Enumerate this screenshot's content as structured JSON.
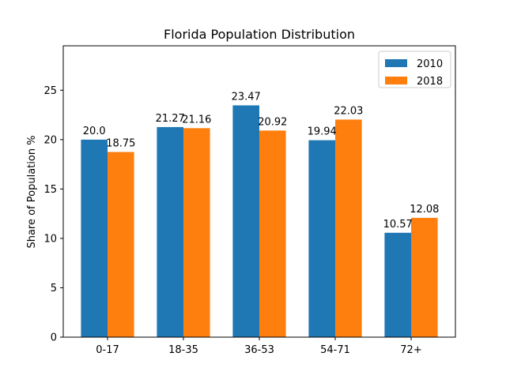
{
  "chart_data": {
    "type": "bar",
    "title": "Florida Population Distribution",
    "xlabel": "",
    "ylabel": "Share of Population %",
    "categories": [
      "0-17",
      "18-35",
      "36-53",
      "54-71",
      "72+"
    ],
    "series": [
      {
        "name": "2010",
        "values": [
          20.0,
          21.27,
          23.47,
          19.94,
          10.57
        ],
        "color": "#1f77b4"
      },
      {
        "name": "2018",
        "values": [
          18.75,
          21.16,
          20.92,
          22.03,
          12.08
        ],
        "color": "#ff7f0e"
      }
    ],
    "data_labels": [
      [
        "20.0",
        "21.27",
        "23.47",
        "19.94",
        "10.57"
      ],
      [
        "18.75",
        "21.16",
        "20.92",
        "22.03",
        "12.08"
      ]
    ],
    "ylim": [
      0,
      29.5
    ],
    "yticks": [
      0,
      5,
      10,
      15,
      20,
      25
    ],
    "grid": false,
    "legend_position": "top-right"
  }
}
